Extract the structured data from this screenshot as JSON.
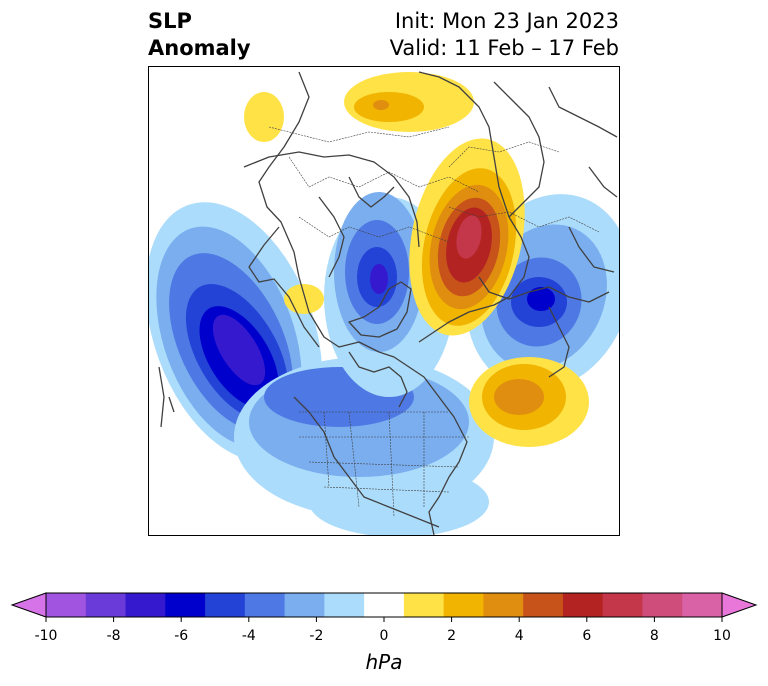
{
  "title": {
    "left_line1": "SLP",
    "left_line2": "Anomaly",
    "init": "Init: Mon 23 Jan 2023",
    "valid": "Valid: 11 Feb – 17 Feb"
  },
  "colorbar": {
    "units": "hPa",
    "tick_labels": [
      "-10",
      "-8",
      "-6",
      "-4",
      "-2",
      "0",
      "2",
      "4",
      "6",
      "8",
      "10"
    ],
    "colors": [
      "#d673e8",
      "#a054df",
      "#6a3bd9",
      "#3419cf",
      "#0000cc",
      "#2342d6",
      "#4e78e3",
      "#7aaeef",
      "#acdcfb",
      "#ffffff",
      "#ffe246",
      "#f1b401",
      "#e08e10",
      "#c7531a",
      "#b32321",
      "#c4364a",
      "#ce4d7b",
      "#d962a7",
      "#e977da"
    ]
  }
}
